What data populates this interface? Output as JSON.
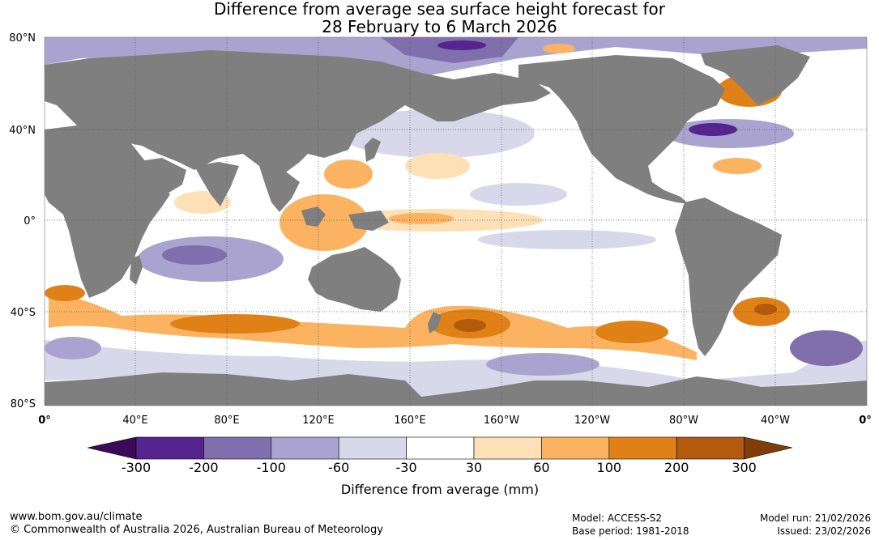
{
  "header": {
    "title_line1": "Difference from average sea surface height forecast for",
    "title_line2": "28 February to 6 March 2026"
  },
  "map": {
    "lat_labels": [
      "80°N",
      "40°N",
      "0°",
      "40°S",
      "80°S"
    ],
    "lon_labels": [
      "0°",
      "40°E",
      "80°E",
      "120°E",
      "160°E",
      "160°W",
      "120°W",
      "80°W",
      "40°W",
      "0°"
    ],
    "colors": {
      "land": "#7f7f7f",
      "ocean_neutral": "#ffffff",
      "grid": "#444444"
    }
  },
  "legend": {
    "title": "Difference from average (mm)",
    "tick_labels": [
      "-300",
      "-200",
      "-100",
      "-60",
      "-30",
      "30",
      "60",
      "100",
      "200",
      "300"
    ],
    "colors": [
      "#3d0a5a",
      "#56248e",
      "#7f6fac",
      "#aba3cf",
      "#d9d8ea",
      "#ffffff",
      "#fde0b6",
      "#fbb362",
      "#e08118",
      "#b45a0d",
      "#7f3d08"
    ]
  },
  "footer": {
    "url": "www.bom.gov.au/climate",
    "copyright": "© Commonwealth of Australia 2026, Australian Bureau of Meteorology",
    "model": "Model: ACCESS-S2",
    "base_period": "Base period: 1981-2018",
    "model_run": "Model run: 21/02/2026",
    "issued": "Issued: 23/02/2026"
  }
}
